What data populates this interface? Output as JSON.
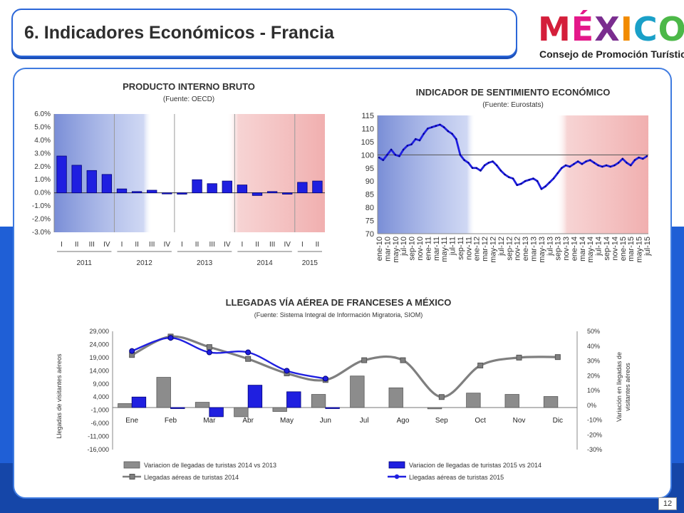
{
  "header": {
    "title": "6. Indicadores Económicos - Francia"
  },
  "logo": {
    "word": "MÉXICO",
    "subtitle": "Consejo de Promoción Turística"
  },
  "footer": {
    "page_number": "12"
  },
  "chart_data": [
    {
      "type": "bar",
      "title": "PRODUCTO INTERNO BRUTO",
      "subtitle": "(Fuente: OECD)",
      "y_ticks": [
        "6.0%",
        "5.0%",
        "4.0%",
        "3.0%",
        "2.0%",
        "1.0%",
        "0.0%",
        "-1.0%",
        "-2.0%",
        "-3.0%"
      ],
      "ylim": [
        -3.0,
        6.0
      ],
      "quarters": [
        "I",
        "II",
        "III",
        "IV",
        "I",
        "II",
        "III",
        "IV",
        "I",
        "II",
        "III",
        "IV",
        "I",
        "II",
        "III",
        "IV",
        "I",
        "II"
      ],
      "years": [
        "2011",
        "2012",
        "2013",
        "2014",
        "2015"
      ],
      "values": [
        2.8,
        2.1,
        1.7,
        1.4,
        0.3,
        0.1,
        0.2,
        0.0,
        -0.1,
        1.0,
        0.7,
        0.9,
        0.6,
        -0.2,
        0.1,
        -0.1,
        0.8,
        0.9
      ],
      "color": "#1f1fe0"
    },
    {
      "type": "line",
      "title": "INDICADOR DE SENTIMIENTO ECONÓMICO",
      "subtitle": "(Fuente: Eurostats)",
      "y_ticks": [
        "115",
        "110",
        "105",
        "100",
        "95",
        "90",
        "85",
        "80",
        "75",
        "70"
      ],
      "ylim": [
        70,
        115
      ],
      "x_labels": [
        "ene-10",
        "mar-10",
        "may-10",
        "jul-10",
        "sep-10",
        "nov-10",
        "ene-11",
        "mar-11",
        "may-11",
        "jul-11",
        "sep-11",
        "nov-11",
        "ene-12",
        "mar-12",
        "may-12",
        "jul-12",
        "sep-12",
        "nov-12",
        "ene-13",
        "mar-13",
        "may-13",
        "jul-13",
        "sep-13",
        "nov-13",
        "ene-14",
        "mar-14",
        "may-14",
        "jul-14",
        "sep-14",
        "nov-14",
        "ene-15",
        "mar-15",
        "may-15",
        "jul-15"
      ],
      "values": [
        99,
        98,
        100,
        102,
        100,
        99.5,
        102,
        103.5,
        104,
        106,
        105.5,
        108,
        110,
        110.5,
        111,
        111.5,
        110.5,
        109,
        108,
        106,
        100,
        98,
        97,
        95,
        95,
        94,
        96,
        97,
        97.5,
        96,
        94,
        92.5,
        91.5,
        91,
        88.5,
        89,
        90,
        90.5,
        91,
        90,
        87,
        88,
        89.5,
        91,
        93,
        95,
        96,
        95.5,
        96.5,
        97.5,
        96.5,
        97.5,
        98,
        97,
        96,
        95.5,
        96,
        95.5,
        96,
        97,
        98.5,
        97,
        96,
        98,
        99,
        98.5,
        99.5
      ],
      "baseline": 100,
      "color": "#1f1fe0"
    },
    {
      "type": "bar-line",
      "title": "LLEGADAS VÍA AÉREA DE FRANCESES A MÉXICO",
      "subtitle": "(Fuente: Sistema Integral de Información Migratoria, SIOM)",
      "ylabel": "Llegadas de visitantes aéreos",
      "y2label_line1": "Variación en llegadas de",
      "y2label_line2": "visitantes aéreos",
      "y_ticks": [
        "29,000",
        "24,000",
        "19,000",
        "14,000",
        "9,000",
        "4,000",
        "-1,000",
        "-6,000",
        "-11,000",
        "-16,000"
      ],
      "y2_ticks": [
        "50%",
        "40%",
        "30%",
        "20%",
        "10%",
        "0%",
        "-10%",
        "-20%",
        "-30%"
      ],
      "ylim": [
        -16000,
        29000
      ],
      "y2lim": [
        -30,
        50
      ],
      "categories": [
        "Ene",
        "Feb",
        "Mar",
        "Abr",
        "May",
        "Jun",
        "Jul",
        "Ago",
        "Sep",
        "Oct",
        "Nov",
        "Dic"
      ],
      "series": [
        {
          "name": "Variacion de llegadas de turistas 2014 vs 2013",
          "kind": "bar",
          "color": "#8c8c8c",
          "values": [
            1500,
            11500,
            2000,
            -3500,
            -1500,
            5000,
            12000,
            7500,
            -500,
            5500,
            5000,
            4200
          ]
        },
        {
          "name": "Variacion de llegadas de turistas 2015 vs 2014",
          "kind": "bar",
          "color": "#1f1fe0",
          "values": [
            4000,
            -200,
            -3500,
            8500,
            6000,
            -100,
            null,
            null,
            null,
            null,
            null,
            null
          ]
        },
        {
          "name": "Llegadas aéreas de turistas 2014",
          "kind": "line",
          "color": "#7f7f7f",
          "values": [
            20000,
            27000,
            23000,
            18500,
            13000,
            10500,
            18000,
            18000,
            4000,
            16000,
            19000,
            19200
          ]
        },
        {
          "name": "Llegadas aéreas de turistas 2015",
          "kind": "line",
          "color": "#1f1fe0",
          "values": [
            21500,
            26500,
            21000,
            21000,
            14000,
            11000,
            null,
            null,
            null,
            null,
            null,
            null
          ]
        }
      ]
    }
  ]
}
